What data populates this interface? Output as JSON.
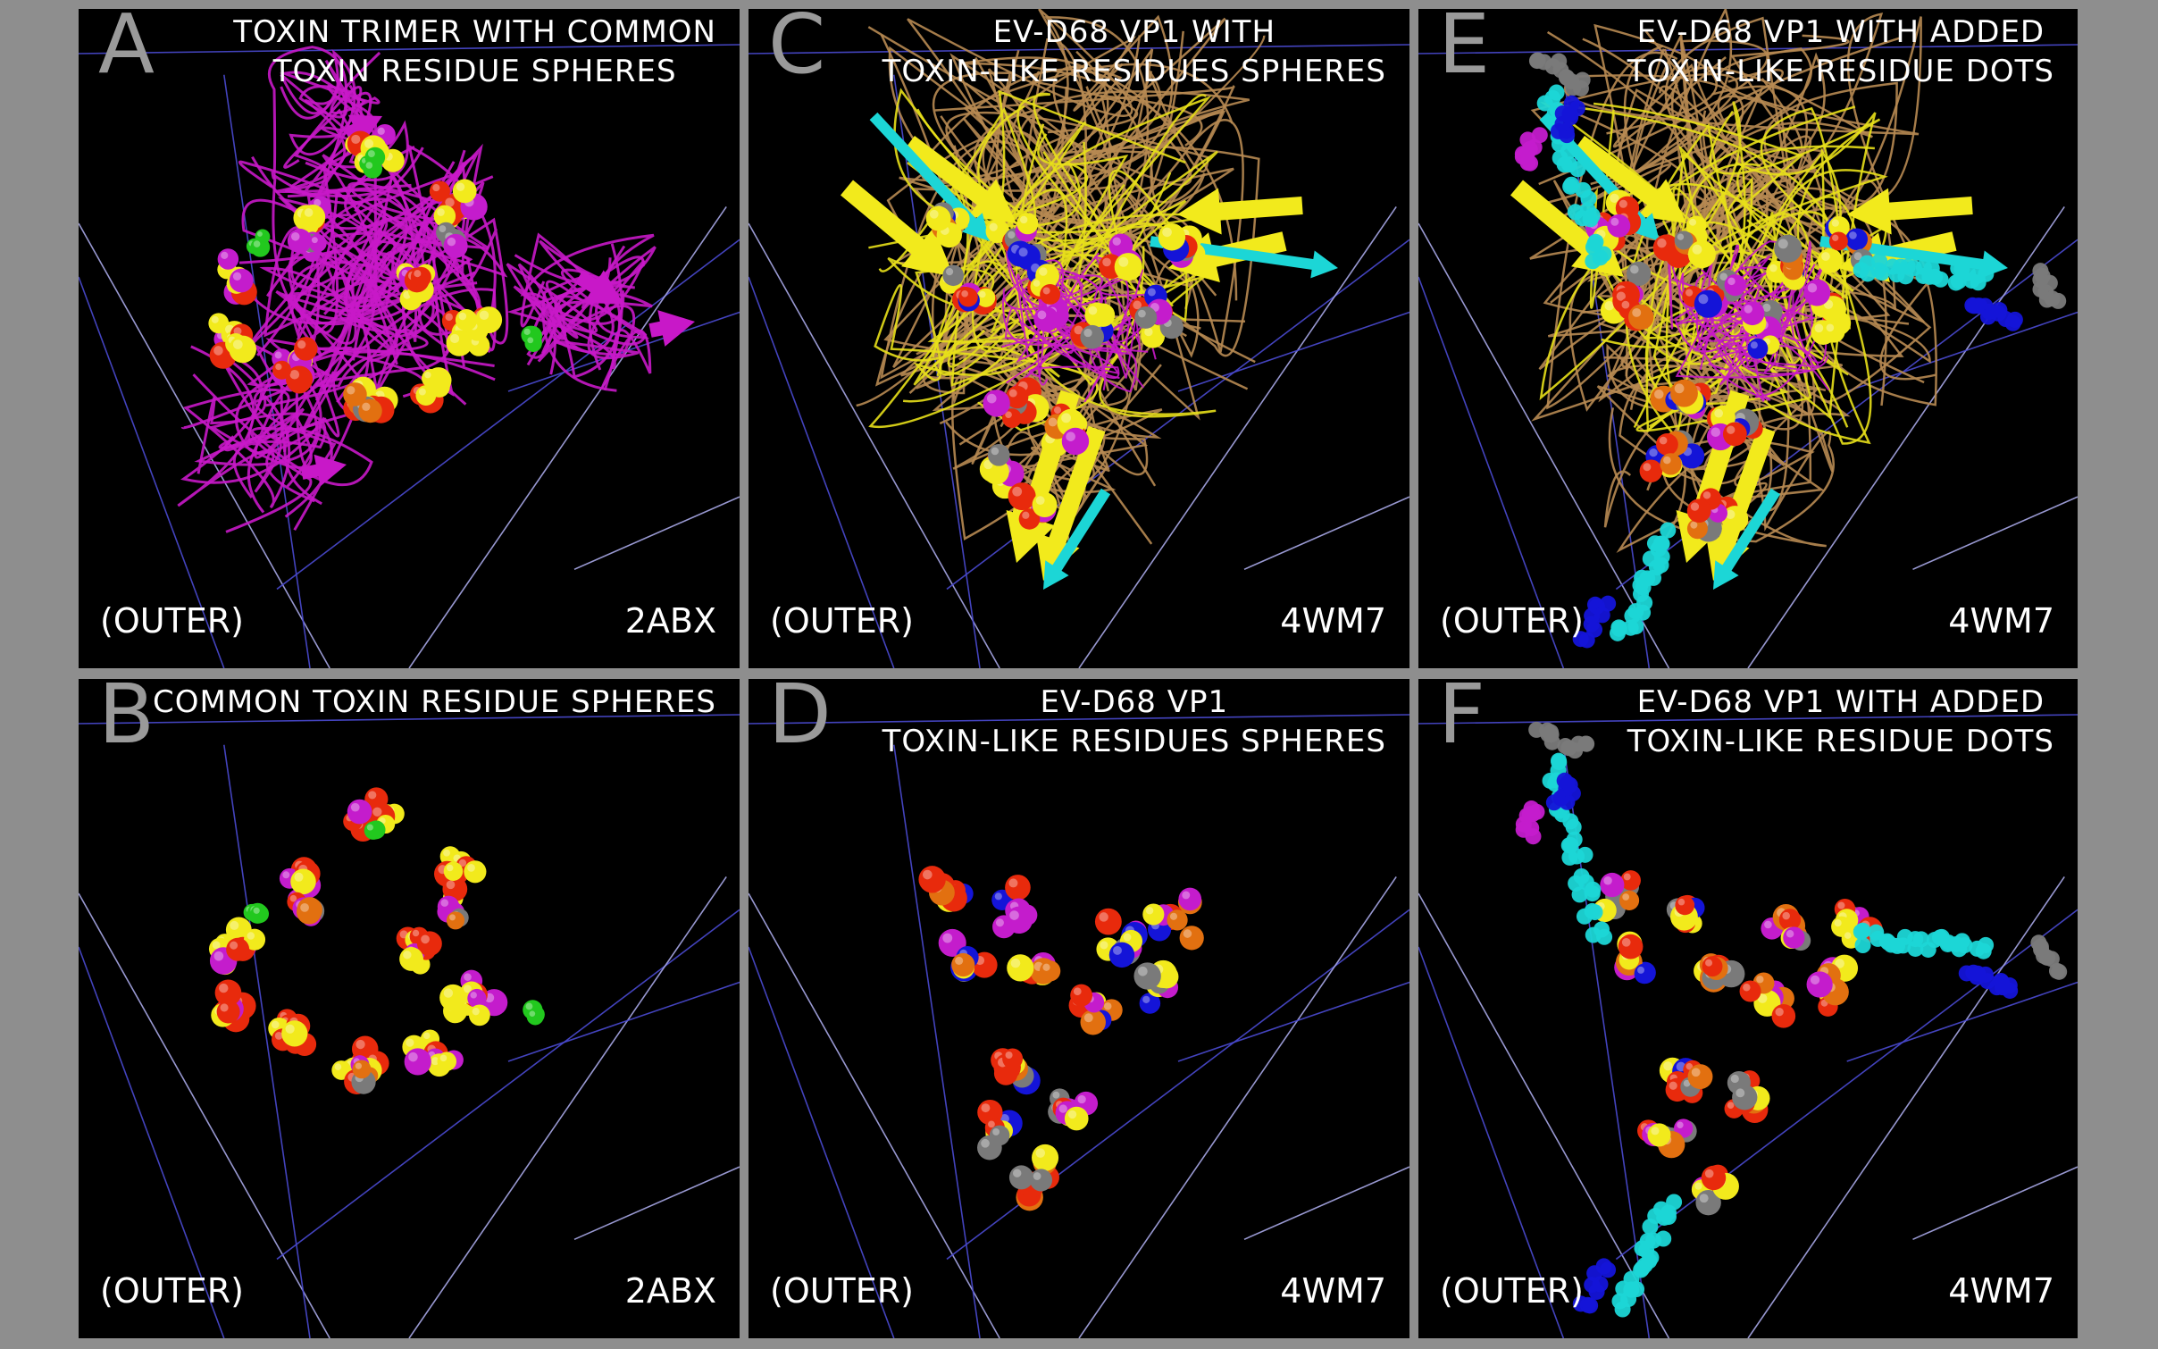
{
  "panels": [
    {
      "letter": "A",
      "title": [
        "TOXIN TRIMER WITH COMMON",
        "TOXIN RESIDUE SPHERES"
      ],
      "orientation": "(OUTER)",
      "pdb": "2ABX"
    },
    {
      "letter": "B",
      "title": [
        "COMMON TOXIN RESIDUE SPHERES"
      ],
      "orientation": "(OUTER)",
      "pdb": "2ABX"
    },
    {
      "letter": "C",
      "title": [
        "EV-D68 VP1 WITH",
        "TOXIN-LIKE RESIDUES SPHERES"
      ],
      "orientation": "(OUTER)",
      "pdb": "4WM7"
    },
    {
      "letter": "D",
      "title": [
        "EV-D68 VP1",
        "TOXIN-LIKE RESIDUES SPHERES"
      ],
      "orientation": "(OUTER)",
      "pdb": "4WM7"
    },
    {
      "letter": "E",
      "title": [
        "EV-D68 VP1 WITH ADDED",
        "TOXIN-LIKE RESIDUE DOTS"
      ],
      "orientation": "(OUTER)",
      "pdb": "4WM7"
    },
    {
      "letter": "F",
      "title": [
        "EV-D68 VP1 WITH ADDED",
        "TOXIN-LIKE RESIDUE DOTS"
      ],
      "orientation": "(OUTER)",
      "pdb": "4WM7"
    }
  ],
  "colors": {
    "background": "#8e8e8e",
    "panel": "#000000",
    "yellow": "#f2ea1c",
    "red": "#e82a0c",
    "magenta": "#c41ccc",
    "orange": "#e27010",
    "blue": "#1414d8",
    "green": "#22c81e",
    "gray": "#7a7a7a",
    "tan": "#b88a50",
    "cyan": "#1cd6d6",
    "grid": "#4a4ad2",
    "gridLight": "#a8a8e8"
  }
}
